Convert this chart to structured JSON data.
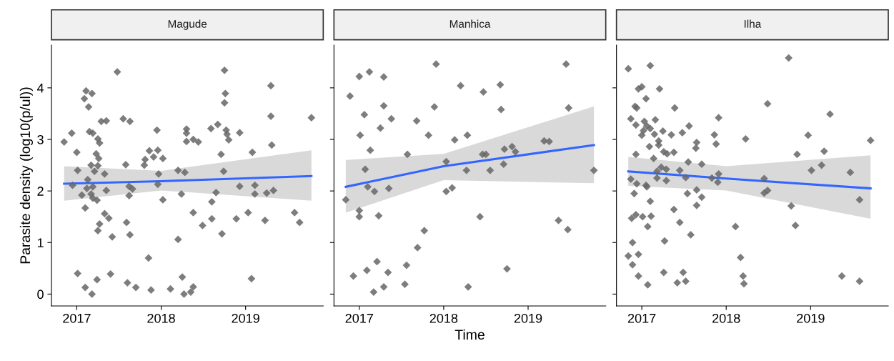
{
  "chart_data": [
    {
      "type": "scatter",
      "title": "Magude",
      "ylabel": "Parasite density (log10(p/ul))",
      "xlim": [
        2016.7,
        2019.92
      ],
      "xticks": [
        2017,
        2018,
        2019
      ],
      "ylim": [
        -0.23,
        4.83
      ],
      "yticks": [
        0,
        1,
        2,
        3,
        4
      ],
      "grid": false,
      "legend": false,
      "series": [
        {
          "type": "scatter",
          "marker": "diamond",
          "color": "#666666",
          "x": [
            2016.85,
            2016.94,
            2017.0,
            2017.01,
            2016.95,
            2017.06,
            2017.1,
            2017.01,
            2017.1,
            2017.18,
            2017.24,
            2017.4,
            2017.09,
            2017.11,
            2017.18,
            2017.14,
            2017.15,
            2017.19,
            2017.25,
            2017.27,
            2017.23,
            2017.26,
            2017.17,
            2017.25,
            2017.21,
            2017.33,
            2017.13,
            2017.12,
            2017.19,
            2017.17,
            2017.19,
            2017.24,
            2017.35,
            2017.33,
            2017.38,
            2017.27,
            2017.25,
            2017.42,
            2017.29,
            2017.35,
            2017.48,
            2017.55,
            2017.63,
            2017.58,
            2017.62,
            2017.66,
            2017.62,
            2017.59,
            2017.63,
            2017.6,
            2017.7,
            2017.85,
            2017.88,
            2017.8,
            2017.81,
            2017.86,
            2017.91,
            2017.95,
            2017.96,
            2017.97,
            2017.96,
            2018.02,
            2018.02,
            2018.11,
            2018.2,
            2018.2,
            2018.24,
            2018.28,
            2018.3,
            2018.3,
            2018.3,
            2018.38,
            2018.44,
            2018.38,
            2018.49,
            2018.25,
            2018.27,
            2018.35,
            2018.38,
            2018.59,
            2018.67,
            2018.71,
            2018.74,
            2018.65,
            2018.6,
            2018.6,
            2018.72,
            2018.75,
            2018.76,
            2018.75,
            2018.77,
            2018.78,
            2018.8,
            2018.89,
            2018.93,
            2018.93,
            2019.03,
            2019.08,
            2019.11,
            2019.11,
            2019.07,
            2019.23,
            2019.25,
            2019.33,
            2019.3,
            2019.3,
            2019.31,
            2019.58,
            2019.64,
            2019.78
          ],
          "values": [
            2.95,
            3.12,
            2.75,
            2.4,
            2.11,
            1.92,
            1.67,
            0.4,
            0.13,
            0.0,
            0.28,
            0.39,
            3.79,
            3.94,
            3.89,
            3.63,
            3.15,
            3.12,
            3.01,
            2.93,
            2.72,
            2.63,
            2.5,
            2.49,
            2.38,
            2.33,
            2.22,
            2.05,
            2.08,
            1.94,
            1.86,
            1.82,
            2.01,
            1.56,
            1.47,
            1.36,
            1.23,
            1.11,
            3.35,
            3.36,
            4.31,
            3.4,
            3.35,
            2.51,
            2.09,
            2.04,
            1.91,
            1.39,
            1.15,
            0.22,
            0.13,
            0.7,
            0.08,
            2.5,
            2.61,
            2.78,
            2.66,
            3.18,
            2.79,
            2.33,
            2.13,
            2.63,
            1.83,
            0.1,
            2.4,
            1.06,
            1.94,
            2.36,
            3.2,
            3.12,
            2.96,
            3.0,
            2.95,
            1.58,
            1.33,
            0.33,
            0.0,
            0.04,
            0.14,
            3.21,
            3.29,
            2.71,
            2.38,
            1.97,
            1.79,
            1.46,
            1.17,
            4.34,
            3.89,
            3.71,
            3.18,
            3.1,
            2.99,
            1.46,
            3.13,
            2.09,
            1.58,
            2.75,
            2.11,
            1.94,
            0.3,
            1.43,
            1.96,
            2.01,
            4.04,
            3.45,
            2.89,
            1.58,
            1.39,
            3.42
          ]
        },
        {
          "type": "line",
          "color": "#3366ff",
          "x": [
            2016.85,
            2018.0,
            2019.78
          ],
          "values": [
            2.14,
            2.19,
            2.29
          ],
          "lower": [
            1.81,
            2.01,
            1.81
          ],
          "upper": [
            2.48,
            2.39,
            2.79
          ]
        }
      ]
    },
    {
      "type": "scatter",
      "title": "Manhica",
      "xlabel": "Time",
      "xlim": [
        2016.7,
        2019.92
      ],
      "xticks": [
        2017,
        2018,
        2019
      ],
      "ylim": [
        -0.23,
        4.83
      ],
      "yticks": [
        0,
        1,
        2,
        3,
        4
      ],
      "tick_labels": "x",
      "grid": false,
      "legend": false,
      "series": [
        {
          "type": "scatter",
          "marker": "diamond",
          "color": "#666666",
          "x": [
            2016.89,
            2017.0,
            2017.12,
            2017.29,
            2017.29,
            2017.06,
            2017.38,
            2017.25,
            2017.01,
            2017.13,
            2017.57,
            2017.07,
            2017.1,
            2017.18,
            2017.35,
            2016.84,
            2017.0,
            2017.0,
            2017.23,
            2017.77,
            2017.69,
            2017.21,
            2017.56,
            2017.09,
            2017.34,
            2016.93,
            2017.17,
            2017.29,
            2017.54,
            2017.68,
            2017.82,
            2017.89,
            2017.91,
            2018.03,
            2018.03,
            2018.1,
            2018.13,
            2018.2,
            2018.28,
            2018.27,
            2018.29,
            2018.43,
            2018.47,
            2018.46,
            2018.5,
            2018.55,
            2018.67,
            2018.68,
            2018.72,
            2018.71,
            2018.81,
            2018.85,
            2018.75,
            2019.19,
            2019.25,
            2019.36,
            2019.45,
            2019.48,
            2019.47,
            2019.78
          ],
          "values": [
            3.84,
            4.22,
            4.31,
            4.21,
            3.65,
            3.48,
            3.4,
            3.22,
            3.08,
            2.79,
            2.71,
            2.42,
            2.08,
            1.99,
            2.05,
            1.83,
            1.62,
            1.5,
            1.52,
            1.23,
            0.9,
            0.63,
            0.56,
            0.46,
            0.42,
            0.35,
            0.04,
            0.14,
            0.19,
            3.36,
            3.08,
            3.63,
            4.46,
            2.57,
            1.99,
            2.06,
            2.99,
            4.04,
            3.08,
            2.4,
            0.14,
            1.5,
            3.92,
            2.71,
            2.71,
            2.4,
            4.06,
            3.58,
            2.81,
            2.52,
            2.86,
            2.76,
            0.49,
            2.97,
            2.96,
            1.43,
            4.46,
            3.61,
            1.25,
            2.4
          ]
        },
        {
          "type": "line",
          "color": "#3366ff",
          "x": [
            2016.84,
            2018.0,
            2019.78
          ],
          "values": [
            2.08,
            2.48,
            2.89
          ],
          "lower": [
            1.58,
            2.21,
            2.15
          ],
          "upper": [
            2.6,
            2.72,
            3.64
          ]
        }
      ]
    },
    {
      "type": "scatter",
      "title": "Ilha",
      "xlim": [
        2016.7,
        2019.92
      ],
      "xticks": [
        2017,
        2018,
        2019
      ],
      "ylim": [
        -0.23,
        4.83
      ],
      "yticks": [
        0,
        1,
        2,
        3,
        4
      ],
      "tick_labels": "x",
      "grid": false,
      "legend": false,
      "series": [
        {
          "type": "scatter",
          "marker": "diamond",
          "color": "#666666",
          "x": [
            2016.84,
            2017.1,
            2016.96,
            2017.0,
            2017.21,
            2017.05,
            2016.92,
            2016.94,
            2017.39,
            2016.87,
            2017.16,
            2016.93,
            2017.03,
            2017.06,
            2017.1,
            2017.02,
            2017.0,
            2017.15,
            2017.25,
            2017.35,
            2017.48,
            2017.56,
            2017.2,
            2017.2,
            2017.09,
            2017.26,
            2017.3,
            2017.38,
            2016.93,
            2017.14,
            2017.55,
            2017.71,
            2017.65,
            2017.64,
            2017.23,
            2017.29,
            2017.18,
            2017.45,
            2017.18,
            2016.87,
            2016.94,
            2017.29,
            2017.52,
            2017.05,
            2017.06,
            2016.91,
            2017.1,
            2017.54,
            2017.65,
            2017.71,
            2017.65,
            2017.38,
            2016.88,
            2016.93,
            2017.01,
            2017.11,
            2017.07,
            2017.45,
            2017.58,
            2017.27,
            2016.89,
            2016.96,
            2016.84,
            2016.89,
            2016.96,
            2017.26,
            2017.49,
            2017.07,
            2017.42,
            2017.52,
            2017.86,
            2017.88,
            2017.91,
            2017.91,
            2017.9,
            2017.83,
            2018.23,
            2018.11,
            2018.17,
            2018.2,
            2018.21,
            2018.49,
            2018.45,
            2018.45,
            2018.49,
            2018.74,
            2018.84,
            2018.77,
            2018.82,
            2018.97,
            2019.01,
            2019.13,
            2019.16,
            2019.23,
            2019.47,
            2019.58,
            2019.37,
            2019.58,
            2019.71
          ],
          "values": [
            4.37,
            4.43,
            3.98,
            4.02,
            3.98,
            3.79,
            3.64,
            3.61,
            3.61,
            3.4,
            3.38,
            3.28,
            3.35,
            3.26,
            3.21,
            3.17,
            3.08,
            3.1,
            3.16,
            3.09,
            3.13,
            3.26,
            2.97,
            2.89,
            2.86,
            2.76,
            2.72,
            2.75,
            2.71,
            2.63,
            2.56,
            2.52,
            2.94,
            2.83,
            2.46,
            2.42,
            2.38,
            2.4,
            2.25,
            2.23,
            2.14,
            2.2,
            2.26,
            2.11,
            2.08,
            1.95,
            1.8,
            1.95,
            2.02,
            1.88,
            1.72,
            1.64,
            1.47,
            1.54,
            1.5,
            1.51,
            1.31,
            1.39,
            1.15,
            1.03,
            1.0,
            0.77,
            0.74,
            0.57,
            0.35,
            0.42,
            0.42,
            0.18,
            0.22,
            0.25,
            3.09,
            2.91,
            3.42,
            2.33,
            2.17,
            2.25,
            3.01,
            1.31,
            0.71,
            0.35,
            0.2,
            3.69,
            2.24,
            1.96,
            2.01,
            4.58,
            2.71,
            1.71,
            1.33,
            3.08,
            2.4,
            2.5,
            2.77,
            3.49,
            2.36,
            1.83,
            0.35,
            0.25,
            2.98
          ]
        },
        {
          "type": "line",
          "color": "#3366ff",
          "x": [
            2016.84,
            2018.0,
            2019.71
          ],
          "values": [
            2.38,
            2.24,
            2.05
          ],
          "lower": [
            2.1,
            2.01,
            1.46
          ],
          "upper": [
            2.66,
            2.48,
            2.69
          ]
        }
      ]
    }
  ]
}
